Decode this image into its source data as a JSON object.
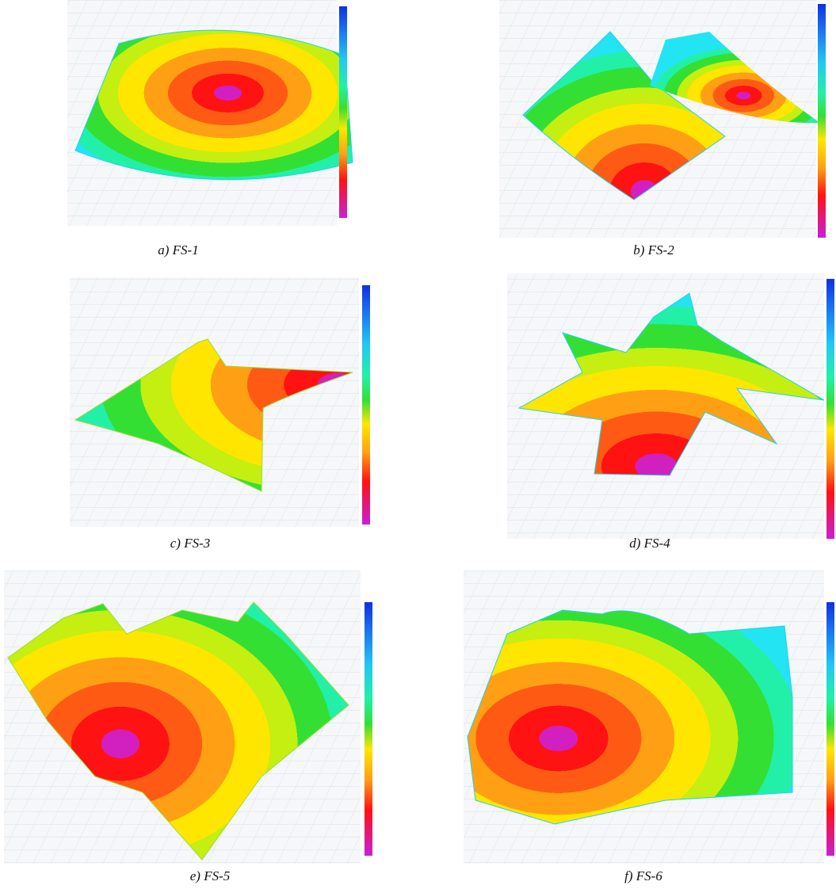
{
  "panels": [
    {
      "caption": "a) FS-1"
    },
    {
      "caption": "b) FS-2"
    },
    {
      "caption": "c) FS-3"
    },
    {
      "caption": "d) FS-4"
    },
    {
      "caption": "e) FS-5"
    },
    {
      "caption": "f) FS-6"
    }
  ]
}
